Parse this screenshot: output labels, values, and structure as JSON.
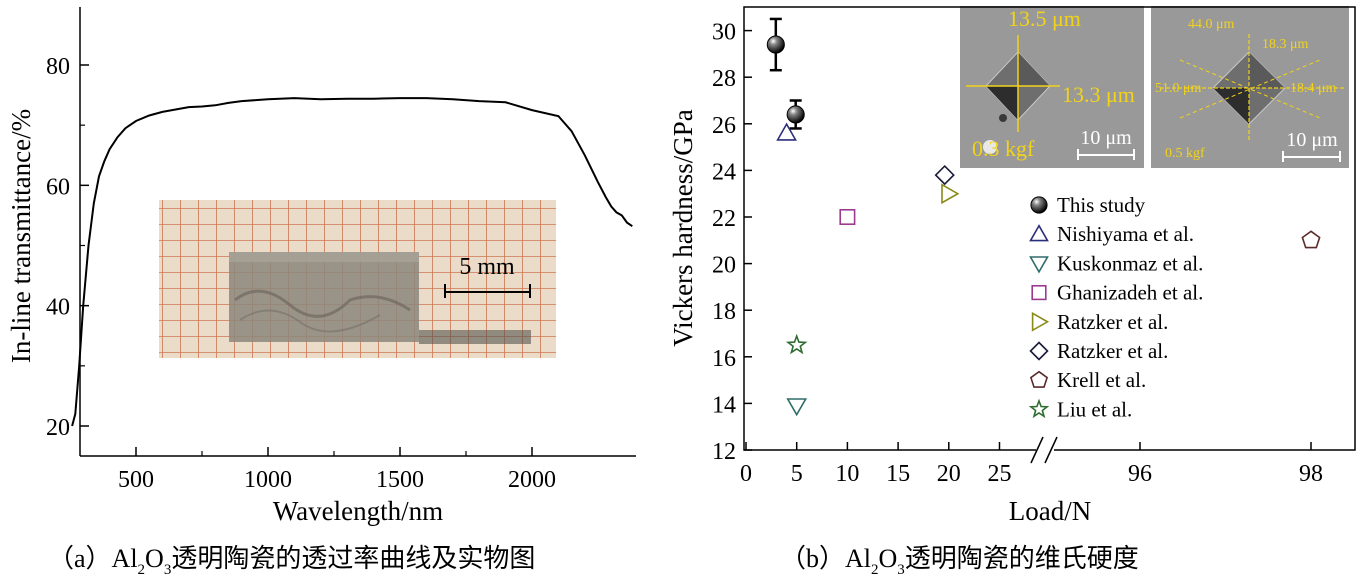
{
  "chart_data": [
    {
      "type": "line",
      "ylabel": "In-line transmittance/%",
      "xlabel": "Wavelength/nm",
      "xlim": [
        250,
        2400
      ],
      "ylim": [
        18,
        92
      ],
      "xticks": [
        "500",
        "1000",
        "1500",
        "2000"
      ],
      "yticks": [
        "20",
        "40",
        "60",
        "80"
      ],
      "x": [
        258,
        270,
        285,
        300,
        320,
        340,
        360,
        380,
        400,
        430,
        460,
        500,
        550,
        600,
        650,
        700,
        750,
        800,
        850,
        900,
        1000,
        1100,
        1200,
        1300,
        1400,
        1500,
        1600,
        1700,
        1800,
        1900,
        2000,
        2100,
        2150,
        2200,
        2250,
        2280,
        2300,
        2320,
        2340,
        2360,
        2380
      ],
      "y": [
        20,
        22,
        30,
        40,
        50,
        57,
        61.5,
        64,
        66,
        68,
        69.5,
        70.7,
        71.6,
        72.2,
        72.6,
        73,
        73.1,
        73.3,
        73.7,
        74,
        74.3,
        74.5,
        74.3,
        74.4,
        74.4,
        74.5,
        74.5,
        74.3,
        74,
        73.8,
        72.5,
        71.5,
        69,
        65,
        60.5,
        58,
        56.5,
        55.5,
        55,
        53.8,
        53.2
      ],
      "inset_photo": {
        "scale_bar": "5 mm"
      },
      "caption": {
        "prefix": "（a）Al",
        "sub1": "2",
        "mid": "O",
        "sub2": "3",
        "suffix": "透明陶瓷的透过率曲线及实物图"
      }
    },
    {
      "type": "scatter",
      "ylabel": "Vickers hardness/GPa",
      "xlabel": "Load/N",
      "ylim": [
        12,
        31
      ],
      "xlim": [
        0,
        27
      ],
      "xticks": [
        "0",
        "5",
        "10",
        "15",
        "20",
        "25",
        "96",
        "98"
      ],
      "yticks": [
        "12",
        "14",
        "16",
        "18",
        "20",
        "22",
        "24",
        "26",
        "28",
        "30"
      ],
      "axis_break": true,
      "series": [
        {
          "name": "This study",
          "marker": "sphere",
          "color": "#000000",
          "points": [
            {
              "x": 2.94,
              "y": 29.4,
              "err": 1.1
            },
            {
              "x": 4.9,
              "y": 26.4,
              "err": 0.6
            }
          ]
        },
        {
          "name": "Nishiyama et al.",
          "marker": "triangle-up",
          "color": "#2b2f7a",
          "points": [
            {
              "x": 4,
              "y": 25.6
            }
          ]
        },
        {
          "name": "Kuskonmaz et al.",
          "marker": "triangle-down",
          "color": "#2f6d6a",
          "points": [
            {
              "x": 5,
              "y": 13.9
            }
          ]
        },
        {
          "name": "Ghanizadeh et al.",
          "marker": "square",
          "color": "#9b3a8f",
          "points": [
            {
              "x": 10,
              "y": 22
            }
          ]
        },
        {
          "name": "Ratzker et al.",
          "marker": "triangle-right",
          "color": "#8a8a1a",
          "points": [
            {
              "x": 20,
              "y": 23
            }
          ]
        },
        {
          "name": "Ratzker et al.",
          "marker": "diamond",
          "color": "#1a1a3a",
          "points": [
            {
              "x": 19.6,
              "y": 23.8
            }
          ]
        },
        {
          "name": "Krell et al.",
          "marker": "pentagon",
          "color": "#5a2a2a",
          "points": [
            {
              "x": 98,
              "y": 21
            }
          ]
        },
        {
          "name": "Liu et al.",
          "marker": "star",
          "color": "#2f6d2f",
          "points": [
            {
              "x": 5,
              "y": 16.5
            }
          ]
        }
      ],
      "insets": [
        {
          "labels": [
            "13.5 μm",
            "13.3 μm",
            "0.3 kgf"
          ],
          "scale_bar": "10 μm"
        },
        {
          "labels": [
            "44.0 μm",
            "18.3 μm",
            "51.0 μm",
            "18.4 μm",
            "0.5 kgf"
          ],
          "scale_bar": "10 μm"
        }
      ],
      "caption": {
        "prefix": "（b）Al",
        "sub1": "2",
        "mid": "O",
        "sub2": "3",
        "suffix": "透明陶瓷的维氏硬度"
      }
    }
  ]
}
